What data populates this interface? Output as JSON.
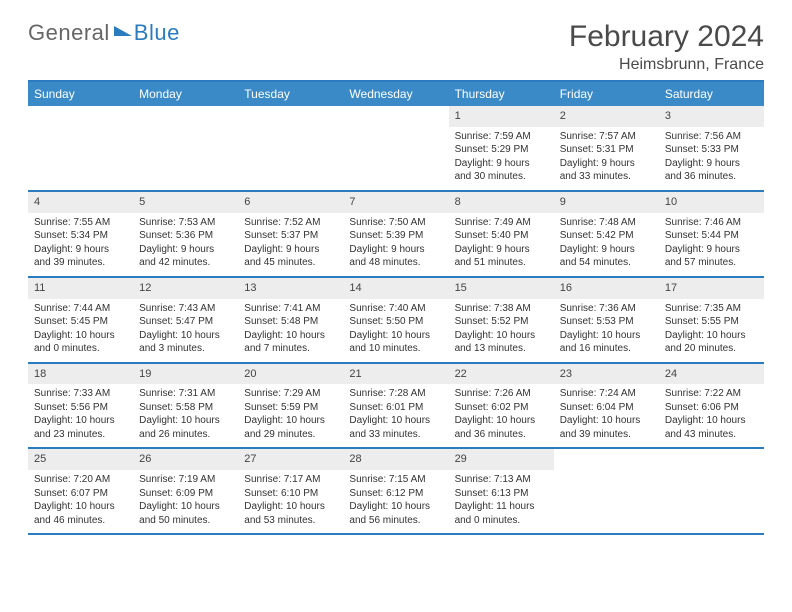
{
  "logo": {
    "general": "General",
    "blue": "Blue"
  },
  "title": "February 2024",
  "location": "Heimsbrunn, France",
  "dayNames": [
    "Sunday",
    "Monday",
    "Tuesday",
    "Wednesday",
    "Thursday",
    "Friday",
    "Saturday"
  ],
  "colors": {
    "accent": "#2b7bbf",
    "header_bg": "#3a8ac8",
    "daynum_bg": "#ededed",
    "text": "#333333"
  },
  "weeks": [
    [
      null,
      null,
      null,
      null,
      {
        "d": "1",
        "sr": "Sunrise: 7:59 AM",
        "ss": "Sunset: 5:29 PM",
        "dl": "Daylight: 9 hours and 30 minutes."
      },
      {
        "d": "2",
        "sr": "Sunrise: 7:57 AM",
        "ss": "Sunset: 5:31 PM",
        "dl": "Daylight: 9 hours and 33 minutes."
      },
      {
        "d": "3",
        "sr": "Sunrise: 7:56 AM",
        "ss": "Sunset: 5:33 PM",
        "dl": "Daylight: 9 hours and 36 minutes."
      }
    ],
    [
      {
        "d": "4",
        "sr": "Sunrise: 7:55 AM",
        "ss": "Sunset: 5:34 PM",
        "dl": "Daylight: 9 hours and 39 minutes."
      },
      {
        "d": "5",
        "sr": "Sunrise: 7:53 AM",
        "ss": "Sunset: 5:36 PM",
        "dl": "Daylight: 9 hours and 42 minutes."
      },
      {
        "d": "6",
        "sr": "Sunrise: 7:52 AM",
        "ss": "Sunset: 5:37 PM",
        "dl": "Daylight: 9 hours and 45 minutes."
      },
      {
        "d": "7",
        "sr": "Sunrise: 7:50 AM",
        "ss": "Sunset: 5:39 PM",
        "dl": "Daylight: 9 hours and 48 minutes."
      },
      {
        "d": "8",
        "sr": "Sunrise: 7:49 AM",
        "ss": "Sunset: 5:40 PM",
        "dl": "Daylight: 9 hours and 51 minutes."
      },
      {
        "d": "9",
        "sr": "Sunrise: 7:48 AM",
        "ss": "Sunset: 5:42 PM",
        "dl": "Daylight: 9 hours and 54 minutes."
      },
      {
        "d": "10",
        "sr": "Sunrise: 7:46 AM",
        "ss": "Sunset: 5:44 PM",
        "dl": "Daylight: 9 hours and 57 minutes."
      }
    ],
    [
      {
        "d": "11",
        "sr": "Sunrise: 7:44 AM",
        "ss": "Sunset: 5:45 PM",
        "dl": "Daylight: 10 hours and 0 minutes."
      },
      {
        "d": "12",
        "sr": "Sunrise: 7:43 AM",
        "ss": "Sunset: 5:47 PM",
        "dl": "Daylight: 10 hours and 3 minutes."
      },
      {
        "d": "13",
        "sr": "Sunrise: 7:41 AM",
        "ss": "Sunset: 5:48 PM",
        "dl": "Daylight: 10 hours and 7 minutes."
      },
      {
        "d": "14",
        "sr": "Sunrise: 7:40 AM",
        "ss": "Sunset: 5:50 PM",
        "dl": "Daylight: 10 hours and 10 minutes."
      },
      {
        "d": "15",
        "sr": "Sunrise: 7:38 AM",
        "ss": "Sunset: 5:52 PM",
        "dl": "Daylight: 10 hours and 13 minutes."
      },
      {
        "d": "16",
        "sr": "Sunrise: 7:36 AM",
        "ss": "Sunset: 5:53 PM",
        "dl": "Daylight: 10 hours and 16 minutes."
      },
      {
        "d": "17",
        "sr": "Sunrise: 7:35 AM",
        "ss": "Sunset: 5:55 PM",
        "dl": "Daylight: 10 hours and 20 minutes."
      }
    ],
    [
      {
        "d": "18",
        "sr": "Sunrise: 7:33 AM",
        "ss": "Sunset: 5:56 PM",
        "dl": "Daylight: 10 hours and 23 minutes."
      },
      {
        "d": "19",
        "sr": "Sunrise: 7:31 AM",
        "ss": "Sunset: 5:58 PM",
        "dl": "Daylight: 10 hours and 26 minutes."
      },
      {
        "d": "20",
        "sr": "Sunrise: 7:29 AM",
        "ss": "Sunset: 5:59 PM",
        "dl": "Daylight: 10 hours and 29 minutes."
      },
      {
        "d": "21",
        "sr": "Sunrise: 7:28 AM",
        "ss": "Sunset: 6:01 PM",
        "dl": "Daylight: 10 hours and 33 minutes."
      },
      {
        "d": "22",
        "sr": "Sunrise: 7:26 AM",
        "ss": "Sunset: 6:02 PM",
        "dl": "Daylight: 10 hours and 36 minutes."
      },
      {
        "d": "23",
        "sr": "Sunrise: 7:24 AM",
        "ss": "Sunset: 6:04 PM",
        "dl": "Daylight: 10 hours and 39 minutes."
      },
      {
        "d": "24",
        "sr": "Sunrise: 7:22 AM",
        "ss": "Sunset: 6:06 PM",
        "dl": "Daylight: 10 hours and 43 minutes."
      }
    ],
    [
      {
        "d": "25",
        "sr": "Sunrise: 7:20 AM",
        "ss": "Sunset: 6:07 PM",
        "dl": "Daylight: 10 hours and 46 minutes."
      },
      {
        "d": "26",
        "sr": "Sunrise: 7:19 AM",
        "ss": "Sunset: 6:09 PM",
        "dl": "Daylight: 10 hours and 50 minutes."
      },
      {
        "d": "27",
        "sr": "Sunrise: 7:17 AM",
        "ss": "Sunset: 6:10 PM",
        "dl": "Daylight: 10 hours and 53 minutes."
      },
      {
        "d": "28",
        "sr": "Sunrise: 7:15 AM",
        "ss": "Sunset: 6:12 PM",
        "dl": "Daylight: 10 hours and 56 minutes."
      },
      {
        "d": "29",
        "sr": "Sunrise: 7:13 AM",
        "ss": "Sunset: 6:13 PM",
        "dl": "Daylight: 11 hours and 0 minutes."
      },
      null,
      null
    ]
  ]
}
